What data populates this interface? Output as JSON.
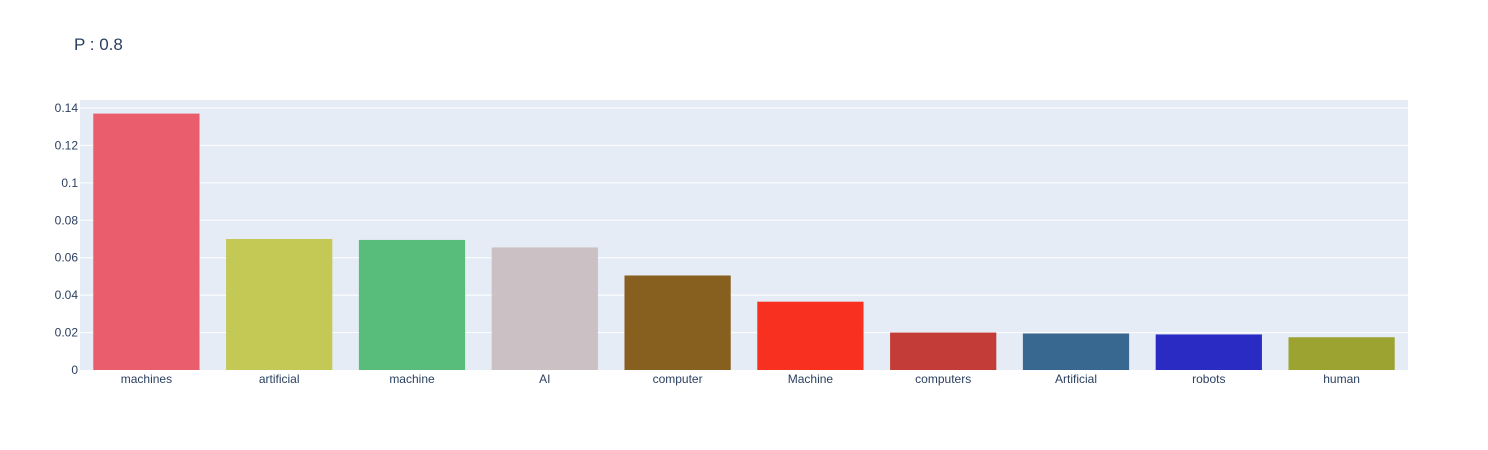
{
  "chart_data": {
    "type": "bar",
    "title": "P : 0.8",
    "xlabel": "",
    "ylabel": "",
    "categories": [
      "machines",
      "artificial",
      "machine",
      "AI",
      "computer",
      "Machine",
      "computers",
      "Artificial",
      "robots",
      "human"
    ],
    "values": [
      0.137,
      0.07,
      0.0695,
      0.0655,
      0.0505,
      0.0365,
      0.02,
      0.0195,
      0.019,
      0.0175
    ],
    "colors": [
      "#e95d6c",
      "#c4c855",
      "#58bc7a",
      "#cbc1c4",
      "#87601f",
      "#f83020",
      "#c33c38",
      "#38678f",
      "#2a2bc3",
      "#9ca331"
    ],
    "ylim": [
      0,
      0.1405
    ],
    "yticks": [
      0,
      0.02,
      0.04,
      0.06,
      0.08,
      0.1,
      0.12,
      0.14
    ],
    "ytick_labels": [
      "0",
      "0.02",
      "0.04",
      "0.06",
      "0.08",
      "0.1",
      "0.12",
      "0.14"
    ],
    "plot_background": "#e5ecf6",
    "grid": true
  }
}
